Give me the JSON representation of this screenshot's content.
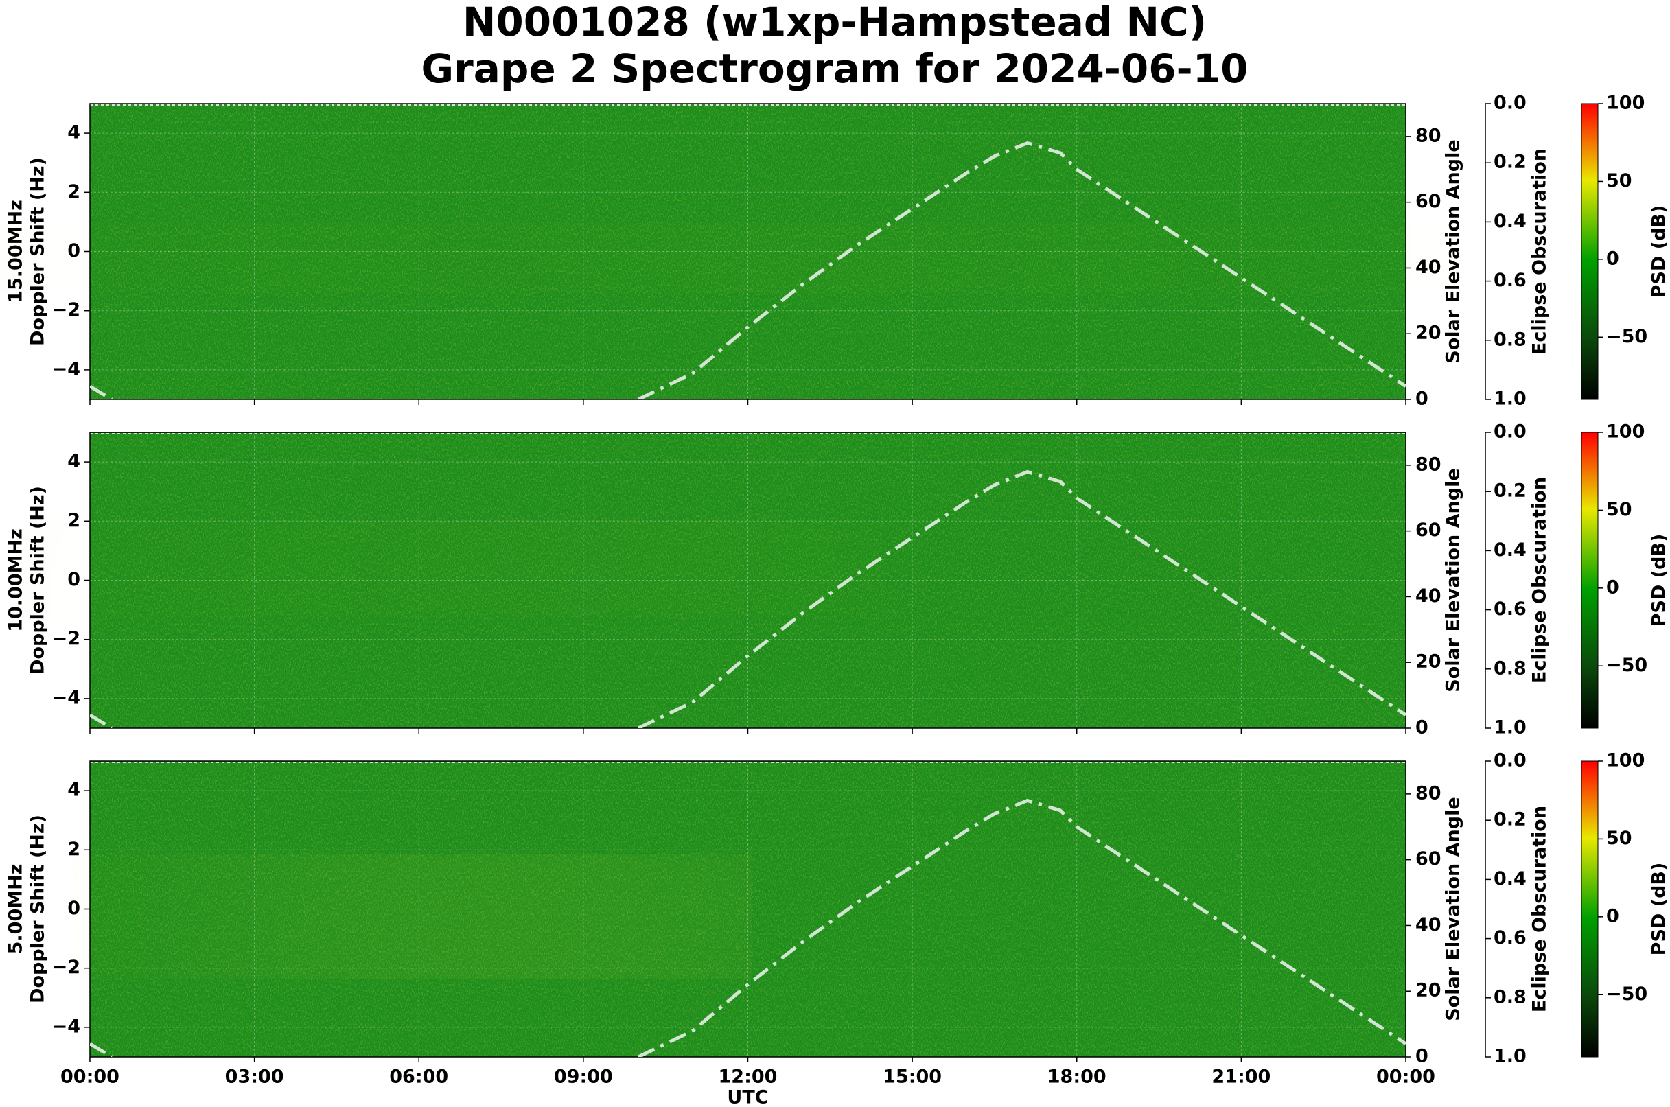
{
  "chart_data": [
    {
      "type": "spectrogram",
      "title": "N0001028 (w1xp-Hampstead NC)",
      "subtitle": "Grape 2 Spectrogram for 2024-06-10",
      "ylabel": [
        "15.00MHz",
        "Doppler Shift (Hz)"
      ],
      "y2label": "Solar Elevation Angle",
      "y3label": "Eclipse Obscuration",
      "clabel": "PSD (dB)",
      "xlim": [
        0,
        24
      ],
      "xticks": [
        0,
        3,
        6,
        9,
        12,
        15,
        18,
        21,
        24
      ],
      "ylim": [
        -5,
        5
      ],
      "yticks": [
        {
          "value": -4,
          "label": "−4"
        },
        {
          "value": -2,
          "label": "−2"
        },
        0,
        2,
        4
      ],
      "y2lim": [
        0,
        90
      ],
      "y2ticks": [
        0,
        20,
        40,
        60,
        80
      ],
      "y3lim": [
        1,
        0
      ],
      "y3ticks": [
        {
          "value": 0,
          "label": "0.0"
        },
        {
          "value": 0.2,
          "label": "0.2"
        },
        {
          "value": 0.4,
          "label": "0.4"
        },
        {
          "value": 0.6,
          "label": "0.6"
        },
        {
          "value": 0.8,
          "label": "0.8"
        },
        {
          "value": 1,
          "label": "1.0"
        }
      ],
      "clim": [
        -90,
        100
      ],
      "cticks": [
        {
          "value": -50,
          "label": "−50"
        },
        0,
        50,
        100
      ],
      "grid": true,
      "series": [
        {
          "axis": "y2",
          "color": "#d2e4d2",
          "x": [
            0,
            0.4,
            null,
            10,
            11,
            12,
            13,
            14,
            15,
            16,
            16.5,
            17.1,
            17.7,
            18,
            19,
            20,
            21,
            22,
            23,
            24
          ],
          "values": [
            4,
            0,
            null,
            0,
            8,
            22,
            35,
            47,
            58,
            69,
            74,
            78,
            75,
            70,
            59,
            48,
            37,
            26,
            15,
            4
          ]
        }
      ]
    },
    {
      "type": "spectrogram",
      "ylabel": [
        "10.00MHz",
        "Doppler Shift (Hz)"
      ],
      "y2label": "Solar Elevation Angle",
      "y3label": "Eclipse Obscuration",
      "clabel": "PSD (dB)",
      "xlim": [
        0,
        24
      ],
      "xticks": [
        0,
        3,
        6,
        9,
        12,
        15,
        18,
        21,
        24
      ],
      "ylim": [
        -5,
        5
      ],
      "yticks": [
        {
          "value": -4,
          "label": "−4"
        },
        {
          "value": -2,
          "label": "−2"
        },
        0,
        2,
        4
      ],
      "y2lim": [
        0,
        90
      ],
      "y2ticks": [
        0,
        20,
        40,
        60,
        80
      ],
      "y3lim": [
        1,
        0
      ],
      "y3ticks": [
        {
          "value": 0,
          "label": "0.0"
        },
        {
          "value": 0.2,
          "label": "0.2"
        },
        {
          "value": 0.4,
          "label": "0.4"
        },
        {
          "value": 0.6,
          "label": "0.6"
        },
        {
          "value": 0.8,
          "label": "0.8"
        },
        {
          "value": 1,
          "label": "1.0"
        }
      ],
      "clim": [
        -90,
        100
      ],
      "cticks": [
        {
          "value": -50,
          "label": "−50"
        },
        0,
        50,
        100
      ],
      "grid": true,
      "series": [
        {
          "axis": "y2",
          "color": "#d2e4d2",
          "x": [
            0,
            0.4,
            null,
            10,
            11,
            12,
            13,
            14,
            15,
            16,
            16.5,
            17.1,
            17.7,
            18,
            19,
            20,
            21,
            22,
            23,
            24
          ],
          "values": [
            4,
            0,
            null,
            0,
            8,
            22,
            35,
            47,
            58,
            69,
            74,
            78,
            75,
            70,
            59,
            48,
            37,
            26,
            15,
            4
          ]
        }
      ]
    },
    {
      "type": "spectrogram",
      "ylabel": [
        "5.00MHz",
        "Doppler Shift (Hz)"
      ],
      "xlabel": "UTC",
      "y2label": "Solar Elevation Angle",
      "y3label": "Eclipse Obscuration",
      "clabel": "PSD (dB)",
      "xlim": [
        0,
        24
      ],
      "xticks": [
        {
          "value": 0,
          "label": "00:00"
        },
        {
          "value": 3,
          "label": "03:00"
        },
        {
          "value": 6,
          "label": "06:00"
        },
        {
          "value": 9,
          "label": "09:00"
        },
        {
          "value": 12,
          "label": "12:00"
        },
        {
          "value": 15,
          "label": "15:00"
        },
        {
          "value": 18,
          "label": "18:00"
        },
        {
          "value": 21,
          "label": "21:00"
        },
        {
          "value": 24,
          "label": "00:00"
        }
      ],
      "ylim": [
        -5,
        5
      ],
      "yticks": [
        {
          "value": -4,
          "label": "−4"
        },
        {
          "value": -2,
          "label": "−2"
        },
        0,
        2,
        4
      ],
      "y2lim": [
        0,
        90
      ],
      "y2ticks": [
        0,
        20,
        40,
        60,
        80
      ],
      "y3lim": [
        1,
        0
      ],
      "y3ticks": [
        {
          "value": 0,
          "label": "0.0"
        },
        {
          "value": 0.2,
          "label": "0.2"
        },
        {
          "value": 0.4,
          "label": "0.4"
        },
        {
          "value": 0.6,
          "label": "0.6"
        },
        {
          "value": 0.8,
          "label": "0.8"
        },
        {
          "value": 1,
          "label": "1.0"
        }
      ],
      "clim": [
        -90,
        100
      ],
      "cticks": [
        {
          "value": -50,
          "label": "−50"
        },
        0,
        50,
        100
      ],
      "grid": true,
      "series": [
        {
          "axis": "y2",
          "color": "#d2e4d2",
          "x": [
            0,
            0.4,
            null,
            10,
            11,
            12,
            13,
            14,
            15,
            16,
            16.5,
            17.1,
            17.7,
            18,
            19,
            20,
            21,
            22,
            23,
            24
          ],
          "values": [
            4,
            0,
            null,
            0,
            8,
            22,
            35,
            47,
            58,
            69,
            74,
            78,
            75,
            70,
            59,
            48,
            37,
            26,
            15,
            4
          ]
        }
      ]
    }
  ]
}
